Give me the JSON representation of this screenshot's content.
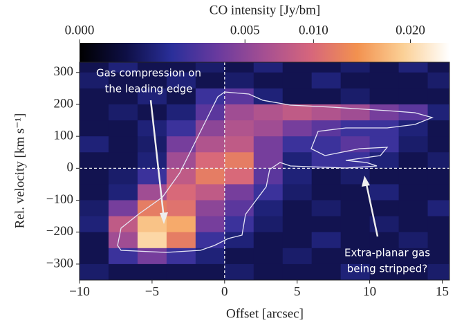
{
  "chart_data": {
    "type": "heatmap",
    "colorbar_label": "CO intensity  [Jy/bm]",
    "x_label": "Offset  [arcsec]",
    "y_label": "Rel. velocity  [km s⁻¹]",
    "annotations": [
      {
        "lines": [
          "Gas compression on",
          "the leading edge"
        ]
      },
      {
        "lines": [
          "Extra-planar gas",
          "being stripped?"
        ]
      }
    ],
    "x": [
      -9,
      -7,
      -5,
      -3,
      -1,
      1,
      3,
      5,
      7,
      9,
      11,
      13,
      15
    ],
    "y": [
      325,
      275,
      225,
      175,
      125,
      75,
      25,
      -25,
      -75,
      -125,
      -175,
      -225,
      -275,
      -325
    ],
    "z": [
      [
        0.0005,
        0.001,
        0.0005,
        0.0005,
        0.0008,
        0.0005,
        0.001,
        0.0005,
        0.0005,
        0.0008,
        0.0005,
        0.001,
        0.0005
      ],
      [
        0.0008,
        0.0005,
        0.0005,
        0.001,
        0.0005,
        0.0008,
        0.0005,
        0.0005,
        0.001,
        0.0005,
        0.0005,
        0.0005,
        0.0008
      ],
      [
        0.0005,
        0.0005,
        0.001,
        0.0005,
        0.002,
        0.003,
        0.001,
        0.0005,
        0.0005,
        0.0008,
        0.0005,
        0.0005,
        0.0005
      ],
      [
        0.0005,
        0.0008,
        0.0005,
        0.001,
        0.003,
        0.006,
        0.007,
        0.008,
        0.007,
        0.006,
        0.004,
        0.003,
        0.001
      ],
      [
        0.0005,
        0.0005,
        0.001,
        0.002,
        0.005,
        0.007,
        0.006,
        0.004,
        0.003,
        0.002,
        0.002,
        0.001,
        0.0005
      ],
      [
        0.001,
        0.0005,
        0.0008,
        0.004,
        0.007,
        0.008,
        0.004,
        0.002,
        0.002,
        0.003,
        0.002,
        0.0008,
        0.0005
      ],
      [
        0.0005,
        0.0005,
        0.001,
        0.006,
        0.01,
        0.012,
        0.004,
        0.001,
        0.002,
        0.002,
        0.001,
        0.0005,
        0.0008
      ],
      [
        0.0005,
        0.0008,
        0.002,
        0.008,
        0.012,
        0.01,
        0.003,
        0.001,
        0.0005,
        0.0008,
        0.0005,
        0.0005,
        0.0005
      ],
      [
        0.0005,
        0.001,
        0.006,
        0.01,
        0.008,
        0.004,
        0.002,
        0.0008,
        0.0005,
        0.0005,
        0.001,
        0.0005,
        0.0005
      ],
      [
        0.0008,
        0.004,
        0.012,
        0.011,
        0.005,
        0.003,
        0.001,
        0.0005,
        0.0008,
        0.0005,
        0.0005,
        0.0005,
        0.001
      ],
      [
        0.001,
        0.008,
        0.018,
        0.016,
        0.004,
        0.002,
        0.0008,
        0.0005,
        0.0005,
        0.0005,
        0.0008,
        0.0005,
        0.0005
      ],
      [
        0.0005,
        0.006,
        0.02,
        0.012,
        0.002,
        0.001,
        0.0005,
        0.0005,
        0.001,
        0.0005,
        0.0005,
        0.0008,
        0.0005
      ],
      [
        0.0005,
        0.002,
        0.004,
        0.002,
        0.001,
        0.0005,
        0.0005,
        0.0008,
        0.0005,
        0.0005,
        0.0005,
        0.0005,
        0.0005
      ],
      [
        0.0008,
        0.0005,
        0.0005,
        0.0005,
        0.0005,
        0.0008,
        0.0005,
        0.0005,
        0.0005,
        0.001,
        0.0005,
        0.0005,
        0.0008
      ]
    ],
    "xlim": [
      -10,
      15.5
    ],
    "ylim": [
      -350,
      332
    ],
    "xticks": [
      {
        "value": -10,
        "label": "−10"
      },
      {
        "value": -5,
        "label": "−5"
      },
      0,
      5,
      10,
      15
    ],
    "yticks": [
      {
        "value": -300,
        "label": "−300"
      },
      {
        "value": -200,
        "label": "−200"
      },
      {
        "value": -100,
        "label": "−100"
      },
      0,
      100,
      200,
      300
    ],
    "clim": [
      0,
      0.025
    ],
    "color_scale": "sqrt",
    "cticks": [
      {
        "value": 0,
        "label": "0.000"
      },
      0.005,
      {
        "value": 0.01,
        "label": "0.010"
      },
      {
        "value": 0.02,
        "label": "0.020"
      }
    ],
    "colormap": [
      "#000000",
      "#0e0f45",
      "#2a2f9a",
      "#6a3a9e",
      "#a54f92",
      "#d6667c",
      "#f2914f",
      "#fbd096",
      "#ffffff"
    ],
    "vlines": [
      0
    ],
    "hlines": [
      0
    ]
  }
}
